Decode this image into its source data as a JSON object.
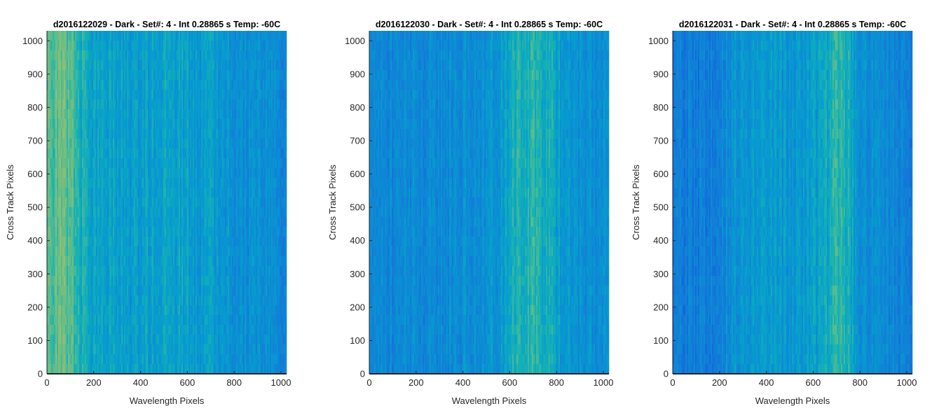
{
  "figure": {
    "colors": {
      "background": "#ffffff",
      "axis": "#262626",
      "colormap_low": "#0072BD",
      "colormap_mid": "#1aa9b5",
      "colormap_high": "#d6c94a"
    }
  },
  "chart_data": [
    {
      "type": "heatmap",
      "title": "d2016122029 - Dark - Set#: 4 - Int 0.28865 s Temp: -60C",
      "xlabel": "Wavelength Pixels",
      "ylabel": "Cross Track Pixels",
      "xlim": [
        0,
        1024
      ],
      "ylim": [
        0,
        1030
      ],
      "xticks": [
        0,
        200,
        400,
        600,
        800,
        1000
      ],
      "xtick_labels": [
        "0",
        "200",
        "400",
        "600",
        "800",
        "1000"
      ],
      "yticks": [
        0,
        100,
        200,
        300,
        400,
        500,
        600,
        700,
        800,
        900,
        1000
      ],
      "ytick_labels": [
        "0",
        "100",
        "200",
        "300",
        "400",
        "500",
        "600",
        "700",
        "800",
        "900",
        "1000"
      ],
      "colormap": "parula",
      "column_profile": {
        "x": [
          0,
          50,
          100,
          150,
          200,
          300,
          400,
          500,
          600,
          700,
          800,
          900,
          1024
        ],
        "level": [
          0.62,
          0.66,
          0.64,
          0.52,
          0.48,
          0.46,
          0.45,
          0.48,
          0.46,
          0.44,
          0.4,
          0.38,
          0.36
        ]
      }
    },
    {
      "type": "heatmap",
      "title": "d2016122030 - Dark - Set#: 4 - Int 0.28865 s Temp: -60C",
      "xlabel": "Wavelength Pixels",
      "ylabel": "Cross Track Pixels",
      "xlim": [
        0,
        1024
      ],
      "ylim": [
        0,
        1030
      ],
      "xticks": [
        0,
        200,
        400,
        600,
        800,
        1000
      ],
      "xtick_labels": [
        "0",
        "200",
        "400",
        "600",
        "800",
        "1000"
      ],
      "yticks": [
        0,
        100,
        200,
        300,
        400,
        500,
        600,
        700,
        800,
        900,
        1000
      ],
      "ytick_labels": [
        "0",
        "100",
        "200",
        "300",
        "400",
        "500",
        "600",
        "700",
        "800",
        "900",
        "1000"
      ],
      "colormap": "parula",
      "column_profile": {
        "x": [
          0,
          100,
          200,
          300,
          400,
          500,
          580,
          620,
          700,
          780,
          820,
          900,
          1024
        ],
        "level": [
          0.38,
          0.36,
          0.36,
          0.37,
          0.38,
          0.4,
          0.46,
          0.54,
          0.55,
          0.52,
          0.44,
          0.4,
          0.38
        ]
      }
    },
    {
      "type": "heatmap",
      "title": "d2016122031 - Dark - Set#: 4 - Int 0.28865 s Temp: -60C",
      "xlabel": "Wavelength Pixels",
      "ylabel": "Cross Track Pixels",
      "xlim": [
        0,
        1024
      ],
      "ylim": [
        0,
        1030
      ],
      "xticks": [
        0,
        200,
        400,
        600,
        800,
        1000
      ],
      "xtick_labels": [
        "0",
        "200",
        "400",
        "600",
        "800",
        "1000"
      ],
      "yticks": [
        0,
        100,
        200,
        300,
        400,
        500,
        600,
        700,
        800,
        900,
        1000
      ],
      "ytick_labels": [
        "0",
        "100",
        "200",
        "300",
        "400",
        "500",
        "600",
        "700",
        "800",
        "900",
        "1000"
      ],
      "colormap": "parula",
      "column_profile": {
        "x": [
          0,
          100,
          200,
          250,
          350,
          450,
          550,
          650,
          700,
          750,
          800,
          900,
          1024
        ],
        "level": [
          0.3,
          0.3,
          0.33,
          0.42,
          0.44,
          0.43,
          0.42,
          0.5,
          0.58,
          0.52,
          0.4,
          0.34,
          0.32
        ]
      }
    }
  ]
}
